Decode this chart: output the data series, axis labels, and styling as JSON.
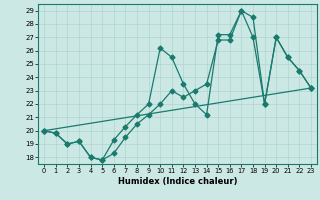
{
  "xlabel": "Humidex (Indice chaleur)",
  "bg_color": "#cce8e4",
  "grid_color": "#b0d5d0",
  "line_color": "#1a7a6e",
  "xlim": [
    -0.5,
    23.5
  ],
  "ylim": [
    17.5,
    29.5
  ],
  "xticks": [
    0,
    1,
    2,
    3,
    4,
    5,
    6,
    7,
    8,
    9,
    10,
    11,
    12,
    13,
    14,
    15,
    16,
    17,
    18,
    19,
    20,
    21,
    22,
    23
  ],
  "yticks": [
    18,
    19,
    20,
    21,
    22,
    23,
    24,
    25,
    26,
    27,
    28,
    29
  ],
  "series1_x": [
    0,
    1,
    2,
    3,
    4,
    5,
    6,
    7,
    8,
    9,
    10,
    11,
    12,
    13,
    14,
    15,
    16,
    17,
    18,
    19,
    20,
    21,
    22,
    23
  ],
  "series1_y": [
    20.0,
    19.8,
    19.0,
    19.2,
    18.0,
    17.8,
    18.3,
    19.5,
    20.5,
    21.2,
    22.0,
    23.0,
    22.5,
    23.0,
    23.5,
    26.8,
    26.8,
    29.0,
    28.5,
    22.0,
    27.0,
    25.5,
    24.5,
    23.2
  ],
  "series2_x": [
    0,
    1,
    2,
    3,
    4,
    5,
    6,
    7,
    8,
    9,
    10,
    11,
    12,
    13,
    14,
    15,
    16,
    17,
    18,
    19,
    20,
    21,
    22,
    23
  ],
  "series2_y": [
    20.0,
    19.8,
    19.0,
    19.2,
    18.0,
    17.8,
    19.3,
    20.3,
    21.2,
    22.0,
    26.2,
    25.5,
    23.5,
    22.0,
    21.2,
    27.2,
    27.2,
    29.0,
    27.0,
    22.0,
    27.0,
    25.5,
    24.5,
    23.2
  ],
  "series3_x": [
    0,
    23
  ],
  "series3_y": [
    20.0,
    23.2
  ]
}
